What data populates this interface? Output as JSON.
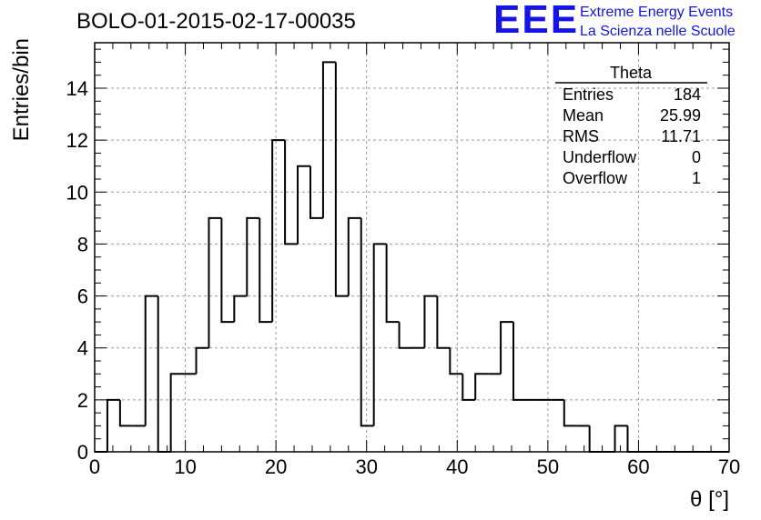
{
  "title": "BOLO-01-2015-02-17-00035",
  "logo": {
    "mark": "EEE",
    "line1": "Extreme Energy Events",
    "line2": "La Scienza nelle Scuole",
    "color": "#1414e6"
  },
  "chart_data": {
    "type": "bar",
    "histogram": true,
    "title": "BOLO-01-2015-02-17-00035",
    "xlabel": "θ [°]",
    "ylabel": "Entries/bin",
    "xlim": [
      0,
      70
    ],
    "ylim": [
      0,
      15.75
    ],
    "xticks": [
      0,
      10,
      20,
      30,
      40,
      50,
      60,
      70
    ],
    "yticks": [
      0,
      2,
      4,
      6,
      8,
      10,
      12,
      14
    ],
    "grid": true,
    "bin_edges": [
      0,
      1.4,
      2.8,
      4.2,
      5.6,
      7.0,
      8.4,
      9.8,
      11.2,
      12.6,
      14.0,
      15.4,
      16.8,
      18.2,
      19.6,
      21.0,
      22.4,
      23.8,
      25.2,
      26.6,
      28.0,
      29.4,
      30.8,
      32.2,
      33.6,
      35.0,
      36.4,
      37.8,
      39.2,
      40.6,
      42.0,
      43.4,
      44.8,
      46.2,
      47.6,
      49.0,
      50.4,
      51.8,
      53.2,
      54.6,
      56.0,
      57.4,
      58.8,
      60.2,
      61.6,
      63.0,
      64.4,
      65.8,
      67.2,
      68.6,
      70.0
    ],
    "values": [
      0,
      2,
      1,
      1,
      6,
      0,
      3,
      3,
      4,
      9,
      5,
      6,
      9,
      5,
      12,
      8,
      11,
      9,
      15,
      6,
      9,
      1,
      8,
      5,
      4,
      4,
      6,
      4,
      3,
      2,
      3,
      3,
      5,
      2,
      2,
      2,
      2,
      1,
      1,
      0,
      0,
      1,
      0,
      0,
      0,
      0,
      0,
      0,
      0,
      0
    ],
    "stats_box": {
      "name": "Theta",
      "rows": [
        {
          "label": "Entries",
          "value": "184"
        },
        {
          "label": "Mean",
          "value": "25.99"
        },
        {
          "label": "RMS",
          "value": "11.71"
        },
        {
          "label": "Underflow",
          "value": "0"
        },
        {
          "label": "Overflow",
          "value": "1"
        }
      ],
      "position": "top-right"
    }
  }
}
